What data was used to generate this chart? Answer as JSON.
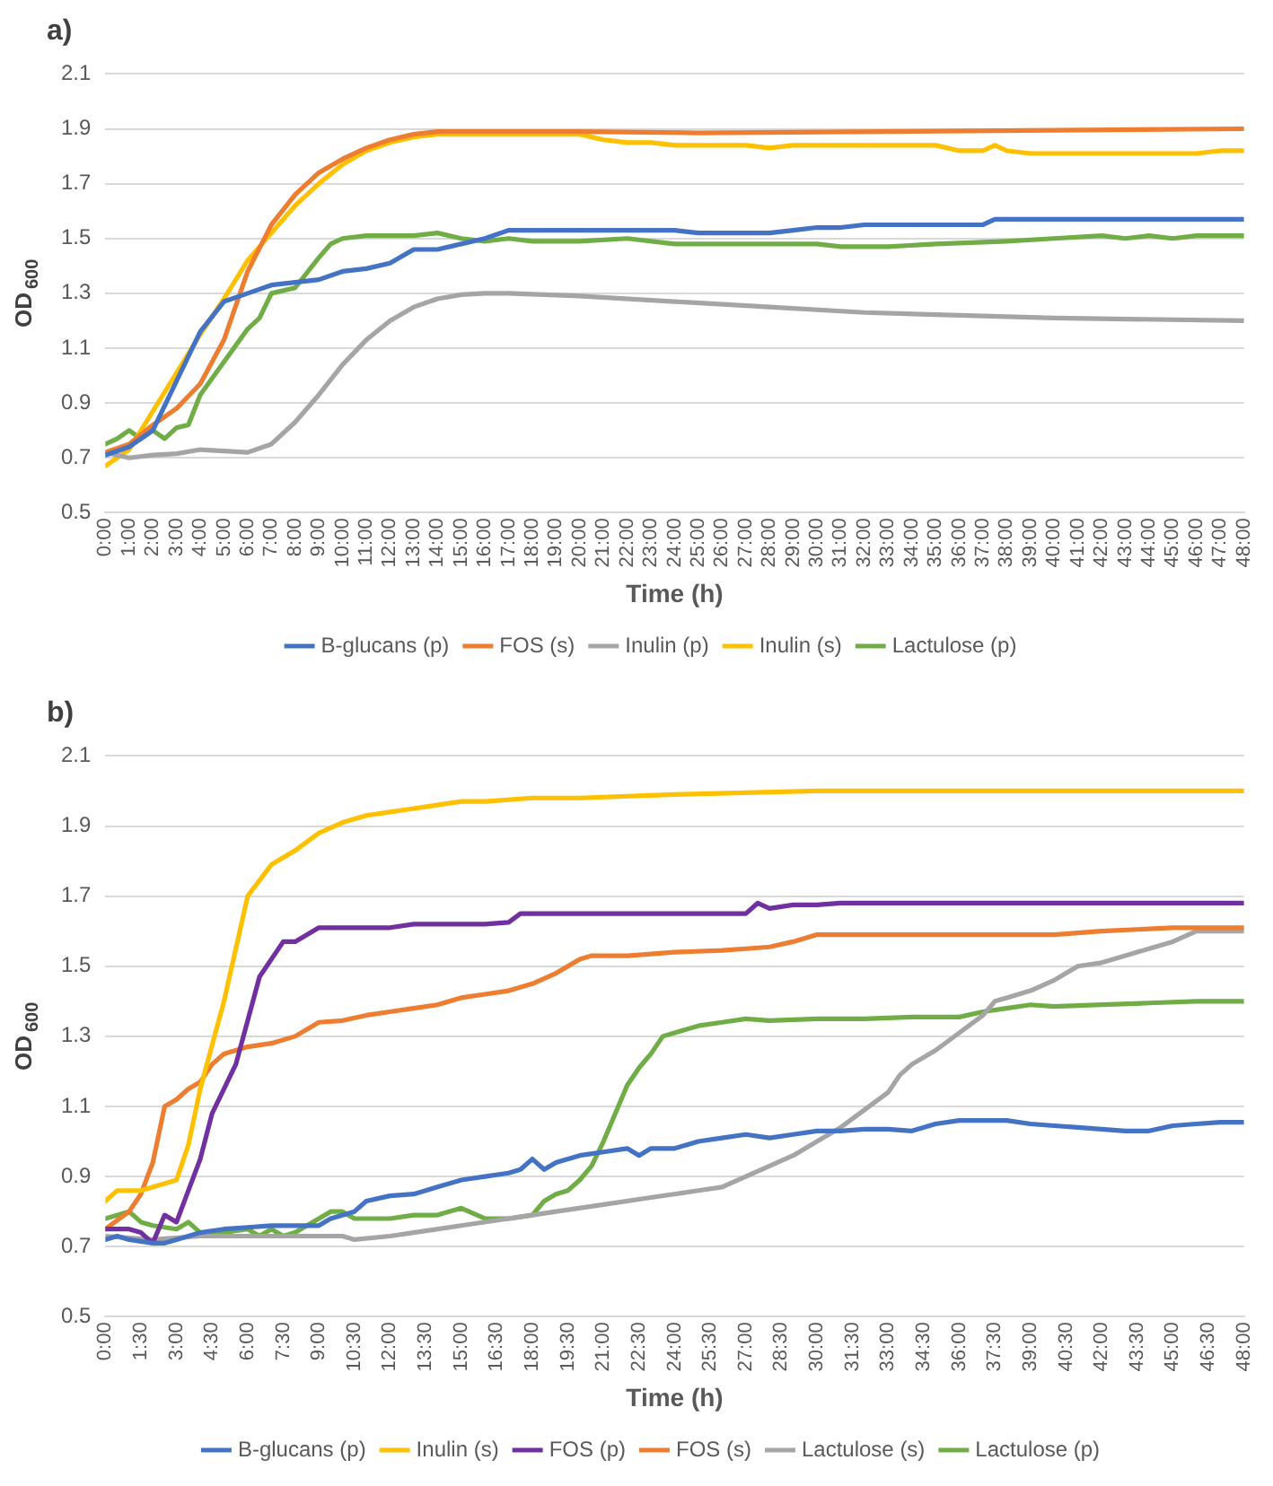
{
  "chart_data": [
    {
      "type": "line",
      "title": "a)",
      "xlabel": "Time (h)",
      "ylabel": "OD$_{600}$",
      "xlim": [
        0,
        48
      ],
      "ylim": [
        0.5,
        2.1
      ],
      "yticks": [
        0.5,
        0.7,
        0.9,
        1.1,
        1.3,
        1.5,
        1.7,
        1.9,
        2.1
      ],
      "xticks": [
        {
          "value": 0,
          "label": "0:00"
        },
        {
          "value": 1,
          "label": "1:00"
        },
        {
          "value": 2,
          "label": "2:00"
        },
        {
          "value": 3,
          "label": "3:00"
        },
        {
          "value": 4,
          "label": "4:00"
        },
        {
          "value": 5,
          "label": "5:00"
        },
        {
          "value": 6,
          "label": "6:00"
        },
        {
          "value": 7,
          "label": "7:00"
        },
        {
          "value": 8,
          "label": "8:00"
        },
        {
          "value": 9,
          "label": "9:00"
        },
        {
          "value": 10,
          "label": "10:00"
        },
        {
          "value": 11,
          "label": "11:00"
        },
        {
          "value": 12,
          "label": "12:00"
        },
        {
          "value": 13,
          "label": "13:00"
        },
        {
          "value": 14,
          "label": "14:00"
        },
        {
          "value": 15,
          "label": "15:00"
        },
        {
          "value": 16,
          "label": "16:00"
        },
        {
          "value": 17,
          "label": "17:00"
        },
        {
          "value": 18,
          "label": "18:00"
        },
        {
          "value": 19,
          "label": "19:00"
        },
        {
          "value": 20,
          "label": "20:00"
        },
        {
          "value": 21,
          "label": "21:00"
        },
        {
          "value": 22,
          "label": "22:00"
        },
        {
          "value": 23,
          "label": "23:00"
        },
        {
          "value": 24,
          "label": "24:00"
        },
        {
          "value": 25,
          "label": "25:00"
        },
        {
          "value": 26,
          "label": "26:00"
        },
        {
          "value": 27,
          "label": "27:00"
        },
        {
          "value": 28,
          "label": "28:00"
        },
        {
          "value": 29,
          "label": "29:00"
        },
        {
          "value": 30,
          "label": "30:00"
        },
        {
          "value": 31,
          "label": "31:00"
        },
        {
          "value": 32,
          "label": "32:00"
        },
        {
          "value": 33,
          "label": "33:00"
        },
        {
          "value": 34,
          "label": "34:00"
        },
        {
          "value": 35,
          "label": "35:00"
        },
        {
          "value": 36,
          "label": "36:00"
        },
        {
          "value": 37,
          "label": "37:00"
        },
        {
          "value": 38,
          "label": "38:00"
        },
        {
          "value": 39,
          "label": "39:00"
        },
        {
          "value": 40,
          "label": "40:00"
        },
        {
          "value": 41,
          "label": "41:00"
        },
        {
          "value": 42,
          "label": "42:00"
        },
        {
          "value": 43,
          "label": "43:00"
        },
        {
          "value": 44,
          "label": "44:00"
        },
        {
          "value": 45,
          "label": "45:00"
        },
        {
          "value": 46,
          "label": "46:00"
        },
        {
          "value": 47,
          "label": "47:00"
        },
        {
          "value": 48,
          "label": "48:00"
        }
      ],
      "grid": "y",
      "legend": "bottom",
      "marker": "none",
      "line_style": "solid",
      "series": [
        {
          "name": "B-glucans (p)",
          "color": "#4472c4",
          "x": [
            0,
            1,
            2,
            3,
            4,
            5,
            6,
            7,
            8,
            9,
            10,
            11,
            12,
            13,
            14,
            15,
            16,
            17,
            24,
            25,
            28,
            29,
            30,
            31,
            32,
            37,
            37.5,
            48
          ],
          "values": [
            0.71,
            0.74,
            0.8,
            0.98,
            1.16,
            1.27,
            1.3,
            1.33,
            1.34,
            1.35,
            1.38,
            1.39,
            1.41,
            1.46,
            1.46,
            1.48,
            1.5,
            1.53,
            1.53,
            1.52,
            1.52,
            1.53,
            1.54,
            1.54,
            1.55,
            1.55,
            1.57,
            1.57
          ]
        },
        {
          "name": "FOS (s)",
          "color": "#ed7d31",
          "x": [
            0,
            1,
            2,
            3,
            4,
            5,
            6,
            7,
            8,
            9,
            10,
            11,
            12,
            13,
            14,
            20,
            25,
            48
          ],
          "values": [
            0.72,
            0.75,
            0.82,
            0.88,
            0.97,
            1.13,
            1.38,
            1.55,
            1.66,
            1.74,
            1.79,
            1.83,
            1.86,
            1.88,
            1.89,
            1.89,
            1.885,
            1.9
          ]
        },
        {
          "name": "Inulin (p)",
          "color": "#a5a5a5",
          "x": [
            0,
            1,
            2,
            3,
            4,
            5,
            6,
            7,
            8,
            9,
            10,
            11,
            12,
            13,
            14,
            15,
            16,
            17,
            20,
            24,
            28,
            32,
            36,
            40,
            48
          ],
          "values": [
            0.72,
            0.7,
            0.71,
            0.715,
            0.73,
            0.725,
            0.72,
            0.75,
            0.83,
            0.93,
            1.04,
            1.13,
            1.2,
            1.25,
            1.28,
            1.295,
            1.3,
            1.3,
            1.29,
            1.27,
            1.25,
            1.23,
            1.22,
            1.21,
            1.2
          ]
        },
        {
          "name": "Inulin (s)",
          "color": "#ffc000",
          "x": [
            0,
            1,
            2,
            3,
            4,
            5,
            6,
            7,
            8,
            9,
            10,
            11,
            12,
            13,
            14,
            20,
            21,
            22,
            23,
            24,
            27,
            28,
            29,
            35,
            36,
            37,
            37.5,
            38,
            39,
            46,
            47,
            48
          ],
          "values": [
            0.67,
            0.73,
            0.87,
            1.01,
            1.15,
            1.28,
            1.42,
            1.52,
            1.62,
            1.7,
            1.77,
            1.82,
            1.85,
            1.87,
            1.88,
            1.88,
            1.86,
            1.85,
            1.85,
            1.84,
            1.84,
            1.83,
            1.84,
            1.84,
            1.82,
            1.82,
            1.84,
            1.82,
            1.81,
            1.81,
            1.82,
            1.82
          ]
        },
        {
          "name": "Lactulose (p)",
          "color": "#70ad47",
          "x": [
            0,
            0.5,
            1,
            1.5,
            2,
            2.5,
            3,
            3.5,
            4,
            5,
            6,
            6.5,
            7,
            8,
            9,
            9.5,
            10,
            11,
            12,
            13,
            14,
            15,
            16,
            17,
            18,
            20,
            22,
            24,
            26,
            28,
            30,
            31,
            33,
            35,
            38,
            40,
            42,
            43,
            44,
            45,
            46,
            48
          ],
          "values": [
            0.75,
            0.77,
            0.8,
            0.77,
            0.8,
            0.77,
            0.81,
            0.82,
            0.93,
            1.05,
            1.17,
            1.21,
            1.3,
            1.32,
            1.43,
            1.48,
            1.5,
            1.51,
            1.51,
            1.51,
            1.52,
            1.5,
            1.49,
            1.5,
            1.49,
            1.49,
            1.5,
            1.48,
            1.48,
            1.48,
            1.48,
            1.47,
            1.47,
            1.48,
            1.49,
            1.5,
            1.51,
            1.5,
            1.51,
            1.5,
            1.51,
            1.51
          ]
        }
      ]
    },
    {
      "type": "line",
      "title": "b)",
      "xlabel": "Time (h)",
      "ylabel": "OD$_{600}$",
      "xlim": [
        0,
        48
      ],
      "ylim": [
        0.5,
        2.1
      ],
      "yticks": [
        0.5,
        0.7,
        0.9,
        1.1,
        1.3,
        1.5,
        1.7,
        1.9,
        2.1
      ],
      "xticks": [
        {
          "value": 0,
          "label": "0:00"
        },
        {
          "value": 1.5,
          "label": "1:30"
        },
        {
          "value": 3,
          "label": "3:00"
        },
        {
          "value": 4.5,
          "label": "4:30"
        },
        {
          "value": 6,
          "label": "6:00"
        },
        {
          "value": 7.5,
          "label": "7:30"
        },
        {
          "value": 9,
          "label": "9:00"
        },
        {
          "value": 10.5,
          "label": "10:30"
        },
        {
          "value": 12,
          "label": "12:00"
        },
        {
          "value": 13.5,
          "label": "13:30"
        },
        {
          "value": 15,
          "label": "15:00"
        },
        {
          "value": 16.5,
          "label": "16:30"
        },
        {
          "value": 18,
          "label": "18:00"
        },
        {
          "value": 19.5,
          "label": "19:30"
        },
        {
          "value": 21,
          "label": "21:00"
        },
        {
          "value": 22.5,
          "label": "22:30"
        },
        {
          "value": 24,
          "label": "24:00"
        },
        {
          "value": 25.5,
          "label": "25:30"
        },
        {
          "value": 27,
          "label": "27:00"
        },
        {
          "value": 28.5,
          "label": "28:30"
        },
        {
          "value": 30,
          "label": "30:00"
        },
        {
          "value": 31.5,
          "label": "31:30"
        },
        {
          "value": 33,
          "label": "33:00"
        },
        {
          "value": 34.5,
          "label": "34:30"
        },
        {
          "value": 36,
          "label": "36:00"
        },
        {
          "value": 37.5,
          "label": "37:30"
        },
        {
          "value": 39,
          "label": "39:00"
        },
        {
          "value": 40.5,
          "label": "40:30"
        },
        {
          "value": 42,
          "label": "42:00"
        },
        {
          "value": 43.5,
          "label": "43:30"
        },
        {
          "value": 45,
          "label": "45:00"
        },
        {
          "value": 46.5,
          "label": "46:30"
        },
        {
          "value": 48,
          "label": "48:00"
        }
      ],
      "grid": "y",
      "legend": "bottom",
      "marker": "none",
      "line_style": "solid",
      "series": [
        {
          "name": "B-glucans (p)",
          "color": "#4472c4",
          "x": [
            0,
            0.5,
            1,
            2,
            2.5,
            3,
            4,
            5,
            6,
            7,
            8,
            9,
            9.5,
            10.5,
            11,
            12,
            13,
            14,
            15,
            16,
            17,
            17.5,
            18,
            18.5,
            19,
            20,
            21,
            22,
            22.5,
            23,
            24,
            25,
            26,
            27,
            28,
            29,
            30,
            31,
            32,
            33,
            34,
            35,
            36,
            37,
            38,
            39,
            40,
            41,
            42,
            43,
            44,
            45,
            46,
            47,
            48
          ],
          "values": [
            0.72,
            0.73,
            0.72,
            0.71,
            0.71,
            0.72,
            0.74,
            0.75,
            0.755,
            0.76,
            0.76,
            0.76,
            0.78,
            0.8,
            0.83,
            0.845,
            0.85,
            0.87,
            0.89,
            0.9,
            0.91,
            0.92,
            0.95,
            0.92,
            0.94,
            0.96,
            0.97,
            0.98,
            0.96,
            0.98,
            0.98,
            1.0,
            1.01,
            1.02,
            1.01,
            1.02,
            1.03,
            1.03,
            1.035,
            1.035,
            1.03,
            1.05,
            1.06,
            1.06,
            1.06,
            1.05,
            1.045,
            1.04,
            1.035,
            1.03,
            1.03,
            1.045,
            1.05,
            1.055,
            1.055
          ]
        },
        {
          "name": "Inulin (s)",
          "color": "#ffc000",
          "x": [
            0,
            0.5,
            1.5,
            3,
            3.5,
            4,
            5,
            6,
            7,
            8,
            9,
            10,
            11,
            12,
            13,
            14,
            15,
            16,
            18,
            20,
            24,
            27,
            30,
            36,
            42,
            48
          ],
          "values": [
            0.83,
            0.86,
            0.86,
            0.89,
            0.99,
            1.15,
            1.4,
            1.7,
            1.79,
            1.83,
            1.88,
            1.91,
            1.93,
            1.94,
            1.95,
            1.96,
            1.97,
            1.97,
            1.98,
            1.98,
            1.99,
            1.995,
            2.0,
            2.0,
            2.0,
            2.0
          ]
        },
        {
          "name": "FOS (p)",
          "color": "#7030a0",
          "x": [
            0,
            1,
            1.5,
            2,
            2.5,
            3,
            4,
            4.5,
            5.5,
            6.5,
            7.5,
            8,
            9,
            12,
            13,
            16,
            17,
            17.5,
            27,
            27.5,
            28,
            29,
            30,
            31,
            48
          ],
          "values": [
            0.75,
            0.75,
            0.74,
            0.71,
            0.79,
            0.77,
            0.95,
            1.08,
            1.22,
            1.47,
            1.57,
            1.57,
            1.61,
            1.61,
            1.62,
            1.62,
            1.625,
            1.65,
            1.65,
            1.68,
            1.665,
            1.675,
            1.675,
            1.68,
            1.68
          ]
        },
        {
          "name": "FOS (s)",
          "color": "#ed7d31",
          "x": [
            0,
            1,
            1.5,
            2,
            2.5,
            3,
            3.5,
            4,
            4.5,
            5,
            5.5,
            6,
            7,
            8,
            9,
            10,
            11,
            12,
            13,
            14,
            15,
            16,
            17,
            18,
            19,
            20,
            20.5,
            22,
            23,
            24,
            26,
            27,
            28,
            29,
            30,
            36,
            40,
            42,
            45,
            48
          ],
          "values": [
            0.75,
            0.8,
            0.85,
            0.94,
            1.1,
            1.12,
            1.15,
            1.17,
            1.22,
            1.25,
            1.26,
            1.27,
            1.28,
            1.3,
            1.34,
            1.345,
            1.36,
            1.37,
            1.38,
            1.39,
            1.41,
            1.42,
            1.43,
            1.45,
            1.48,
            1.52,
            1.53,
            1.53,
            1.535,
            1.54,
            1.545,
            1.55,
            1.555,
            1.57,
            1.59,
            1.59,
            1.59,
            1.6,
            1.61,
            1.61
          ]
        },
        {
          "name": "Lactulose (s)",
          "color": "#a5a5a5",
          "x": [
            0,
            2,
            4,
            10,
            10.5,
            12,
            13,
            15,
            17,
            18,
            19,
            21,
            23,
            25,
            26,
            27,
            28,
            29,
            30,
            31,
            32,
            33,
            33.5,
            34,
            35,
            36,
            37,
            37.5,
            38,
            39,
            40,
            40.5,
            41,
            42,
            43,
            44,
            45,
            46,
            48
          ],
          "values": [
            0.73,
            0.72,
            0.73,
            0.73,
            0.72,
            0.73,
            0.74,
            0.76,
            0.78,
            0.79,
            0.8,
            0.82,
            0.84,
            0.86,
            0.87,
            0.9,
            0.93,
            0.96,
            1.0,
            1.04,
            1.09,
            1.14,
            1.19,
            1.22,
            1.26,
            1.31,
            1.36,
            1.4,
            1.41,
            1.43,
            1.46,
            1.48,
            1.5,
            1.51,
            1.53,
            1.55,
            1.57,
            1.6,
            1.6
          ]
        },
        {
          "name": "Lactulose (p)",
          "color": "#70ad47",
          "x": [
            0,
            1,
            1.5,
            2,
            3,
            3.5,
            4,
            5,
            6,
            6.5,
            7,
            7.5,
            8,
            9,
            9.5,
            10,
            10.5,
            12,
            13,
            14,
            15,
            16,
            17,
            18,
            18.5,
            19,
            19.5,
            20,
            20.5,
            21,
            21.5,
            22,
            22.5,
            23,
            23.5,
            24,
            25,
            26,
            27,
            28,
            30,
            32,
            34,
            36,
            37,
            38,
            39,
            40,
            42,
            44,
            46,
            48
          ],
          "values": [
            0.78,
            0.8,
            0.77,
            0.76,
            0.75,
            0.77,
            0.74,
            0.74,
            0.75,
            0.73,
            0.75,
            0.73,
            0.74,
            0.78,
            0.8,
            0.8,
            0.78,
            0.78,
            0.79,
            0.79,
            0.81,
            0.78,
            0.78,
            0.79,
            0.83,
            0.85,
            0.86,
            0.89,
            0.93,
            1.0,
            1.08,
            1.16,
            1.21,
            1.25,
            1.3,
            1.31,
            1.33,
            1.34,
            1.35,
            1.345,
            1.35,
            1.35,
            1.355,
            1.355,
            1.37,
            1.38,
            1.39,
            1.385,
            1.39,
            1.395,
            1.4,
            1.4
          ]
        }
      ]
    }
  ]
}
